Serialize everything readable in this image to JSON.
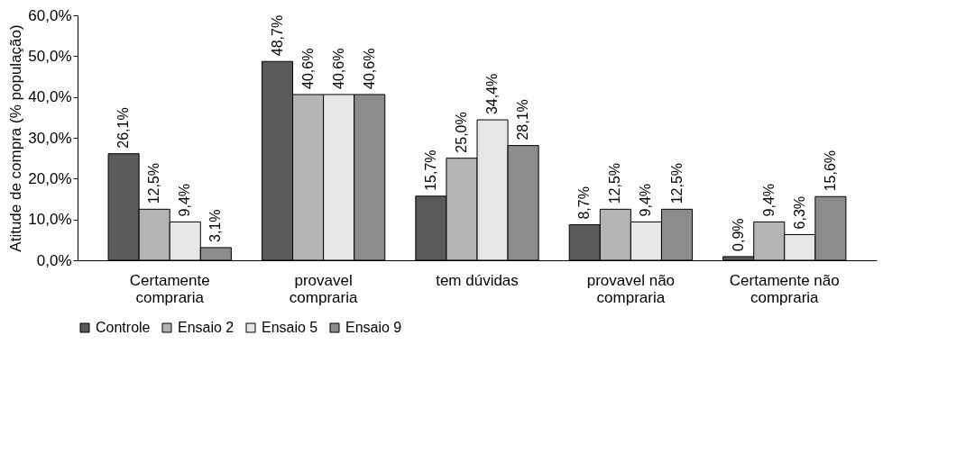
{
  "chart_data": {
    "type": "bar",
    "ylabel": "Atitude de compra (% população)",
    "categories": [
      "Certamente compraria",
      "provavel compraria",
      "tem dúvidas",
      "provavel não compraria",
      "Certamente não compraria"
    ],
    "series": [
      {
        "name": "Controle",
        "color": "#5a5a5a",
        "values": [
          26.1,
          48.7,
          15.7,
          8.7,
          0.9
        ],
        "value_labels": [
          "26,1%",
          "48,7%",
          "15,7%",
          "8,7%",
          "0,9%"
        ]
      },
      {
        "name": "Ensaio 2",
        "color": "#b4b4b4",
        "values": [
          12.5,
          40.6,
          25.0,
          12.5,
          9.4
        ],
        "value_labels": [
          "12,5%",
          "40,6%",
          "25,0%",
          "12,5%",
          "9,4%"
        ]
      },
      {
        "name": "Ensaio 5",
        "color": "#e6e6e6",
        "values": [
          9.4,
          40.6,
          34.4,
          9.4,
          6.3
        ],
        "value_labels": [
          "9,4%",
          "40,6%",
          "34,4%",
          "9,4%",
          "6,3%"
        ]
      },
      {
        "name": "Ensaio 9",
        "color": "#8c8c8c",
        "values": [
          3.1,
          40.6,
          28.1,
          12.5,
          15.6
        ],
        "value_labels": [
          "3,1%",
          "40,6%",
          "28,1%",
          "12,5%",
          "15,6%"
        ]
      }
    ],
    "ylim": [
      0,
      60
    ],
    "yticks": [
      {
        "value": 0,
        "label": "0,0%"
      },
      {
        "value": 10,
        "label": "10,0%"
      },
      {
        "value": 20,
        "label": "20,0%"
      },
      {
        "value": 30,
        "label": "30,0%"
      },
      {
        "value": 40,
        "label": "40,0%"
      },
      {
        "value": 50,
        "label": "50,0%"
      },
      {
        "value": 60,
        "label": "60,0%"
      }
    ],
    "grid": false,
    "legend": "bottom"
  }
}
